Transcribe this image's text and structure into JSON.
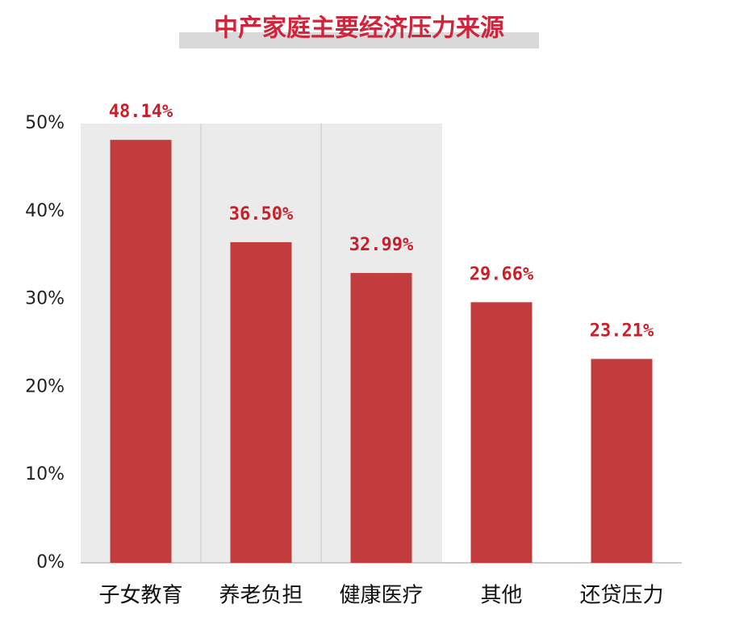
{
  "chart_data": {
    "type": "bar",
    "title": "中产家庭主要经济压力来源",
    "categories": [
      "子女教育",
      "养老负担",
      "健康医疗",
      "其他",
      "还贷压力"
    ],
    "values": [
      48.14,
      36.5,
      32.99,
      29.66,
      23.21
    ],
    "value_labels": [
      "48.14%",
      "36.50%",
      "32.99%",
      "29.66%",
      "23.21%"
    ],
    "color": "#c23b3d",
    "ylim": [
      0,
      50
    ],
    "yticks": [
      {
        "value": 0,
        "label": "0%"
      },
      {
        "value": 10,
        "label": "10%"
      },
      {
        "value": 20,
        "label": "20%"
      },
      {
        "value": 30,
        "label": "30%"
      },
      {
        "value": 40,
        "label": "40%"
      },
      {
        "value": 50,
        "label": "50%"
      }
    ],
    "grid": false
  }
}
